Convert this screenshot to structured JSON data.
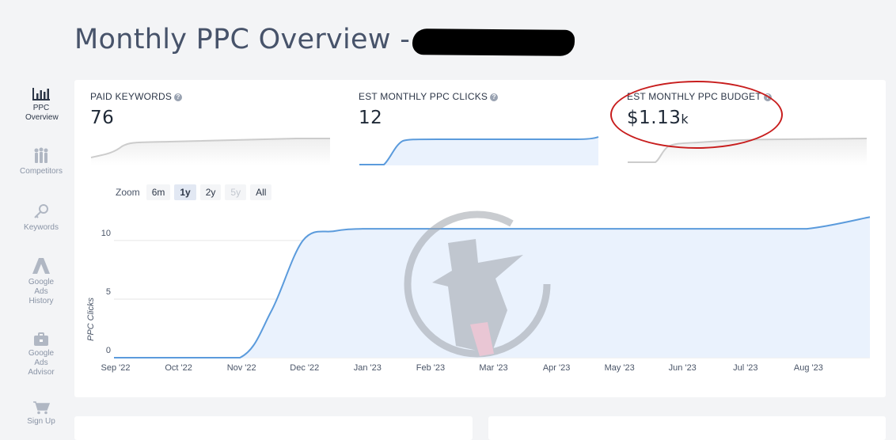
{
  "page": {
    "title": "Monthly PPC Overview -"
  },
  "sidebar": {
    "items": [
      {
        "label": "PPC Overview",
        "icon": "bar-chart-icon",
        "active": true
      },
      {
        "label": "Competitors",
        "icon": "competitors-icon",
        "active": false
      },
      {
        "label": "Keywords",
        "icon": "key-icon",
        "active": false
      },
      {
        "label": "Google Ads History",
        "icon": "google-ads-icon",
        "active": false
      },
      {
        "label": "Google Ads Advisor",
        "icon": "briefcase-icon",
        "active": false
      },
      {
        "label": "Sign Up",
        "icon": "cart-icon",
        "active": false
      }
    ]
  },
  "metrics": [
    {
      "label": "PAID KEYWORDS",
      "value": "76",
      "value_suffix": ""
    },
    {
      "label": "EST MONTHLY PPC CLICKS",
      "value": "12",
      "value_suffix": ""
    },
    {
      "label": "EST MONTHLY PPC BUDGET",
      "value": "$1.13",
      "value_suffix": "k"
    }
  ],
  "zoom": {
    "label": "Zoom",
    "options": [
      {
        "label": "6m",
        "state": "normal"
      },
      {
        "label": "1y",
        "state": "selected"
      },
      {
        "label": "2y",
        "state": "normal"
      },
      {
        "label": "5y",
        "state": "disabled"
      },
      {
        "label": "All",
        "state": "normal"
      }
    ]
  },
  "colors": {
    "line": "#5b9bdc",
    "fill": "#eaf2fd",
    "annotation": "#c81e1e",
    "sparkline_grey": "#cccccc"
  },
  "chart_data": {
    "type": "area",
    "title": "",
    "xlabel": "",
    "ylabel": "PPC Clicks",
    "ylim": [
      0,
      12
    ],
    "yticks": [
      0,
      5,
      10
    ],
    "xticks": [
      "Sep '22",
      "Oct '22",
      "Nov '22",
      "Dec '22",
      "Jan '23",
      "Feb '23",
      "Mar '23",
      "Apr '23",
      "May '23",
      "Jun '23",
      "Jul '23",
      "Aug '23"
    ],
    "x": [
      "Sep '22",
      "Oct '22",
      "Nov '22",
      "Nov '22 mid",
      "Dec '22",
      "Dec '22 mid",
      "Jan '23",
      "Feb '23",
      "Mar '23",
      "Apr '23",
      "May '23",
      "Jun '23",
      "Jul '23",
      "Aug '23",
      "Sep '23"
    ],
    "series": [
      {
        "values": [
          0,
          0,
          0,
          4,
          10,
          10.8,
          11,
          11,
          11,
          11,
          11,
          11,
          11,
          11,
          12
        ]
      }
    ],
    "grid": true,
    "legend": "none"
  }
}
